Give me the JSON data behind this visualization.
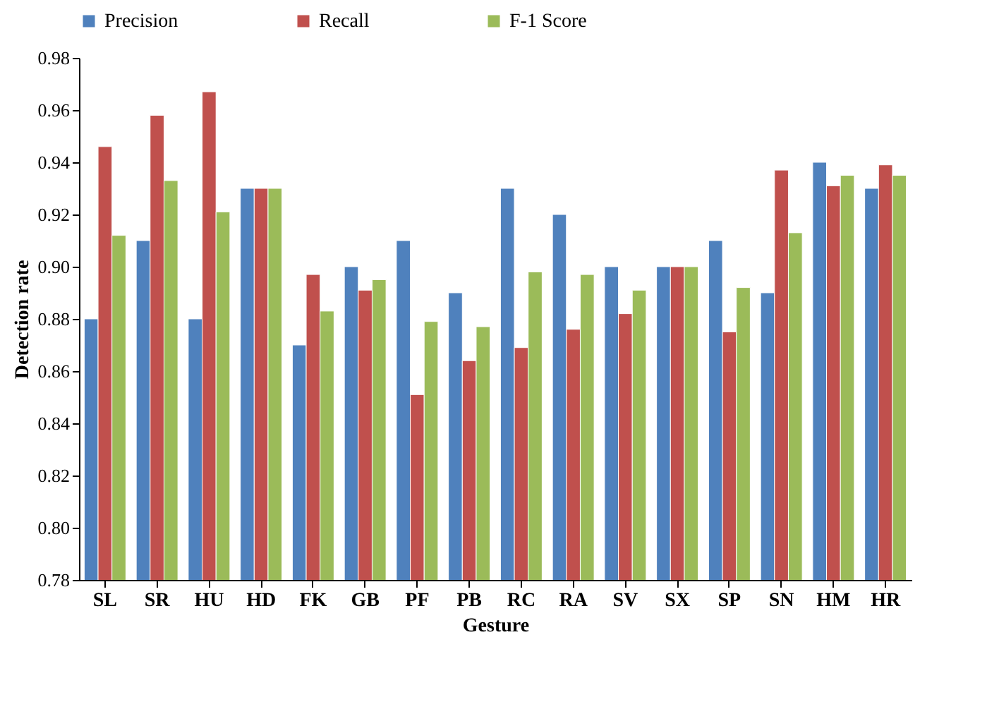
{
  "chart_data": {
    "type": "bar",
    "xlabel": "Gesture",
    "ylabel": "Detection rate",
    "categories": [
      "SL",
      "SR",
      "HU",
      "HD",
      "FK",
      "GB",
      "PF",
      "PB",
      "RC",
      "RA",
      "SV",
      "SX",
      "SP",
      "SN",
      "HM",
      "HR"
    ],
    "series": [
      {
        "name": "Precision",
        "color": "#4f81bd",
        "values": [
          0.88,
          0.91,
          0.88,
          0.93,
          0.87,
          0.9,
          0.91,
          0.89,
          0.93,
          0.92,
          0.9,
          0.9,
          0.91,
          0.89,
          0.94,
          0.93
        ]
      },
      {
        "name": "Recall",
        "color": "#c0504d",
        "values": [
          0.946,
          0.958,
          0.967,
          0.93,
          0.897,
          0.891,
          0.851,
          0.864,
          0.869,
          0.876,
          0.882,
          0.9,
          0.875,
          0.937,
          0.931,
          0.939
        ]
      },
      {
        "name": "F-1 Score",
        "color": "#9bbb59",
        "values": [
          0.912,
          0.933,
          0.921,
          0.93,
          0.883,
          0.895,
          0.879,
          0.877,
          0.898,
          0.897,
          0.891,
          0.9,
          0.892,
          0.913,
          0.935,
          0.935
        ]
      }
    ],
    "ylim": [
      0.78,
      0.98
    ],
    "yticks": [
      0.78,
      {
        "value": 0.8,
        "label": "0.80"
      },
      0.82,
      0.84,
      0.86,
      0.88,
      {
        "value": 0.9,
        "label": "0.90"
      },
      0.92,
      0.94,
      0.96,
      0.98
    ],
    "grid": false,
    "legend": "top"
  }
}
